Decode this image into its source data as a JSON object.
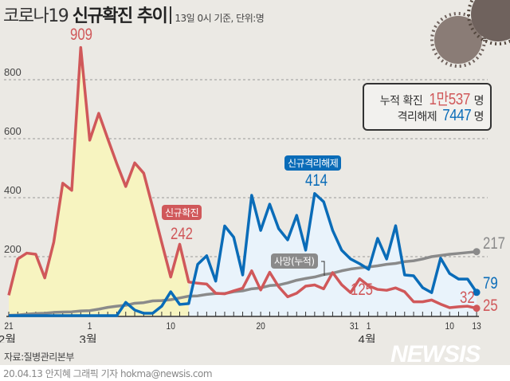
{
  "header": {
    "title_light": "코로나19",
    "title_bold": "신규확진 추이",
    "subtitle": "13일 0시 기준, 단위:명"
  },
  "summary": {
    "cum_label": "누적 확진",
    "cum_value": "1만537",
    "cum_unit": "명",
    "rel_label": "격리해제",
    "rel_value": "7447",
    "rel_unit": "명"
  },
  "footer": {
    "source": "자료:질병관리본부",
    "credit": "20.04.13 안지혜 그래픽 기자 hokma@newsis.com",
    "logo": "NEWSIS"
  },
  "colors": {
    "confirmed": "#d0585a",
    "released": "#0a6cb8",
    "deaths": "#8a8a8a",
    "confirmed_fill": "#f7f4c0",
    "released_fill": "#e9f3fb"
  },
  "chart_data": {
    "type": "line",
    "ylim": [
      0,
      900
    ],
    "yticks": [
      200,
      400,
      600,
      800
    ],
    "grid": true,
    "x_tick_labels": [
      {
        "i": 0,
        "text": "21"
      },
      {
        "i": 9,
        "text": "1"
      },
      {
        "i": 18,
        "text": "10"
      },
      {
        "i": 28,
        "text": "20"
      },
      {
        "i": 39,
        "text": "31"
      },
      {
        "i": 40,
        "text": "1"
      },
      {
        "i": 49,
        "text": "10"
      },
      {
        "i": 52,
        "text": "13"
      }
    ],
    "month_labels": [
      {
        "i": 0,
        "text": "2월"
      },
      {
        "i": 9,
        "text": "3월"
      },
      {
        "i": 40,
        "text": "4월"
      }
    ],
    "series": [
      {
        "name": "신규확진",
        "key": "confirmed",
        "values": [
          69,
          192,
          212,
          208,
          128,
          249,
          449,
          425,
          909,
          595,
          686,
          600,
          516,
          438,
          518,
          483,
          367,
          248,
          131,
          242,
          114,
          110,
          107,
          76,
          74,
          84,
          93,
          152,
          87,
          147,
          98,
          64,
          76,
          100,
          104,
          91,
          146,
          105,
          78,
          125,
          101,
          89,
          86,
          94,
          81,
          47,
          47,
          53,
          39,
          27,
          30,
          32,
          25
        ]
      },
      {
        "name": "신규격리해제",
        "key": "released",
        "values": [
          0,
          0,
          0,
          0,
          0,
          0,
          0,
          0,
          0,
          0,
          0,
          0,
          0,
          45,
          19,
          8,
          8,
          32,
          81,
          38,
          41,
          174,
          203,
          117,
          304,
          266,
          138,
          408,
          289,
          378,
          295,
          257,
          340,
          222,
          414,
          386,
          289,
          222,
          192,
          176,
          157,
          262,
          192,
          305,
          138,
          135,
          95,
          78,
          195,
          143,
          124,
          124,
          79
        ]
      },
      {
        "name": "사망(누적)",
        "key": "deaths",
        "values": [
          1,
          2,
          5,
          7,
          8,
          11,
          12,
          13,
          16,
          17,
          22,
          28,
          32,
          35,
          42,
          44,
          50,
          51,
          54,
          60,
          66,
          67,
          72,
          75,
          75,
          81,
          84,
          91,
          94,
          102,
          104,
          111,
          120,
          126,
          131,
          139,
          144,
          152,
          158,
          162,
          165,
          169,
          174,
          177,
          183,
          186,
          192,
          200,
          204,
          208,
          211,
          214,
          217
        ]
      }
    ],
    "annotations": {
      "peak_confirmed": "909",
      "confirmed_mar11": "242",
      "peak_released": "414",
      "confirmed_mar31": "125",
      "deaths_last": "217",
      "released_last": "79",
      "confirmed_apr12": "32",
      "confirmed_last": "25"
    }
  }
}
